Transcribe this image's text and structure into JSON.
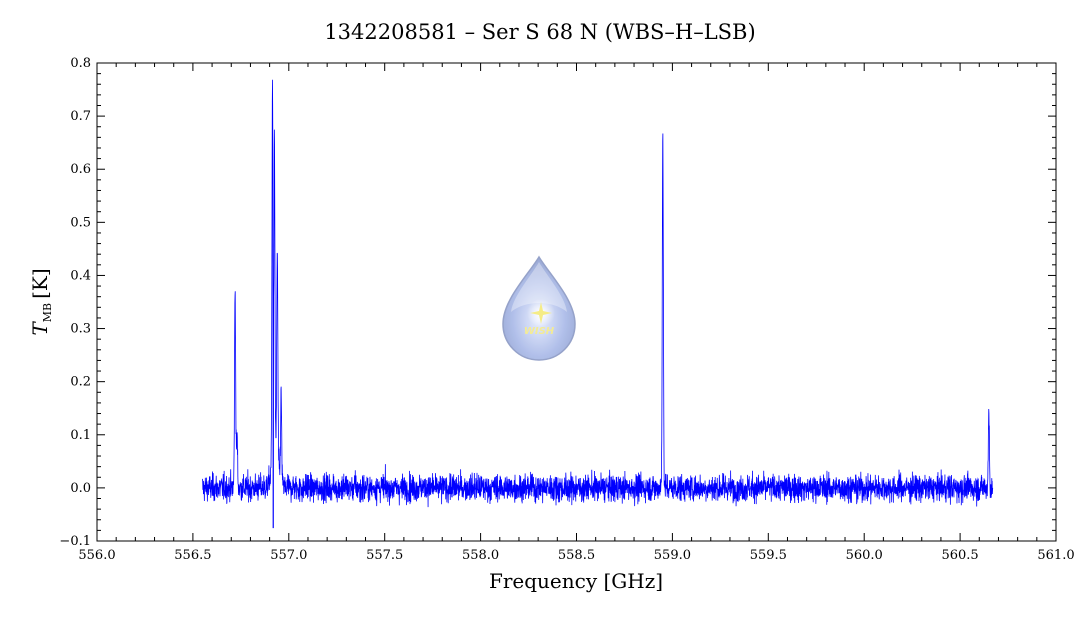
{
  "chart_data": {
    "type": "line",
    "title": "1342208581 – Ser S 68 N (WBS–H–LSB)",
    "xlabel": "Frequency [GHz]",
    "ylabel_main": "T",
    "ylabel_sub": "MB",
    "ylabel_unit": "[K]",
    "xlim": [
      556.0,
      561.0
    ],
    "ylim": [
      -0.1,
      0.8
    ],
    "x_ticks": [
      "556.0",
      "556.5",
      "557.0",
      "557.5",
      "558.0",
      "558.5",
      "559.0",
      "559.5",
      "560.0",
      "560.5",
      "561.0"
    ],
    "y_ticks": [
      "−0.1",
      "0.0",
      "0.1",
      "0.2",
      "0.3",
      "0.4",
      "0.5",
      "0.6",
      "0.7",
      "0.8"
    ],
    "grid": false,
    "series": [
      {
        "color": "#0000ff",
        "x_range": [
          556.55,
          560.67
        ],
        "baseline_rms": 0.02,
        "features": [
          {
            "x": 556.72,
            "peak": 0.38
          },
          {
            "x": 556.73,
            "peak": 0.1
          },
          {
            "x": 556.915,
            "peak": 0.73
          },
          {
            "x": 556.925,
            "peak": 0.59
          },
          {
            "x": 556.94,
            "peak": 0.4
          },
          {
            "x": 556.96,
            "peak": 0.16
          },
          {
            "x": 558.95,
            "peak": 0.67
          },
          {
            "x": 560.65,
            "peak": 0.14
          }
        ]
      }
    ]
  },
  "logo": {
    "text": "WISH"
  }
}
